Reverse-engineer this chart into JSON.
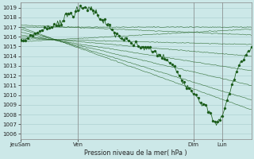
{
  "xlabel": "Pression niveau de la mer( hPa )",
  "ylim": [
    1005.5,
    1019.5
  ],
  "yticks": [
    1006,
    1007,
    1008,
    1009,
    1010,
    1011,
    1012,
    1013,
    1014,
    1015,
    1016,
    1017,
    1018,
    1019
  ],
  "xtick_labels": [
    "JeuSam",
    "Ven",
    "Dim",
    "Lun"
  ],
  "xtick_positions": [
    0,
    48,
    144,
    168
  ],
  "xlim": [
    0,
    192
  ],
  "bg_color": "#cce8e8",
  "grid_color": "#a8cccc",
  "line_color": "#1a5c1a",
  "line_width": 0.6,
  "marker_size": 1.2,
  "num_steps": 193,
  "vline_positions": [
    0,
    48,
    144,
    168
  ],
  "vline_color": "#888888",
  "forecast_starts": [
    1015.5,
    1015.8,
    1016.0,
    1016.2,
    1016.5,
    1016.8,
    1017.0,
    1017.2,
    1017.0
  ],
  "forecast_ends": [
    1016.8,
    1015.2,
    1014.0,
    1012.5,
    1011.0,
    1009.5,
    1008.5,
    1016.2,
    1017.0
  ]
}
